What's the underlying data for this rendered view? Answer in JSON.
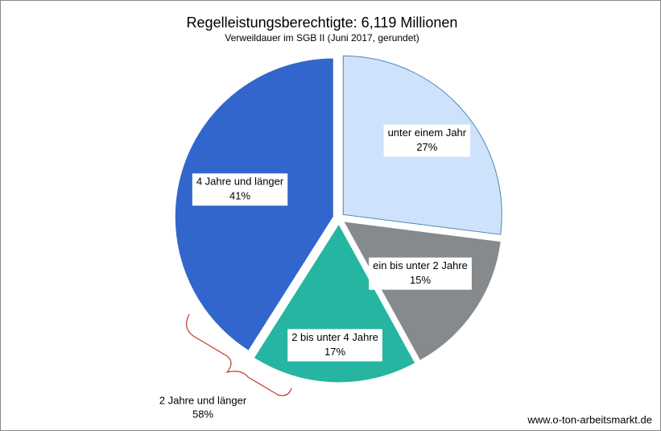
{
  "chart_data": {
    "type": "pie",
    "title": "Regelleistungsberechtigte: 6,119 Millionen",
    "subtitle": "Verweildauer  im SGB II (Juni 2017, gerundet)",
    "categories": [
      "unter einem Jahr",
      "ein bis unter 2 Jahre",
      "2 bis unter 4 Jahre",
      "4 Jahre und länger"
    ],
    "values": [
      27,
      15,
      17,
      41
    ],
    "value_labels": [
      "27%",
      "15%",
      "17%",
      "41%"
    ],
    "colors": [
      "#cfe2fb",
      "#878a8c",
      "#26b5a0",
      "#3366cc"
    ],
    "annotation": {
      "text": "2 Jahre und länger",
      "label": "58%"
    },
    "source": "www.o-ton-arbeitsmarkt.de"
  }
}
